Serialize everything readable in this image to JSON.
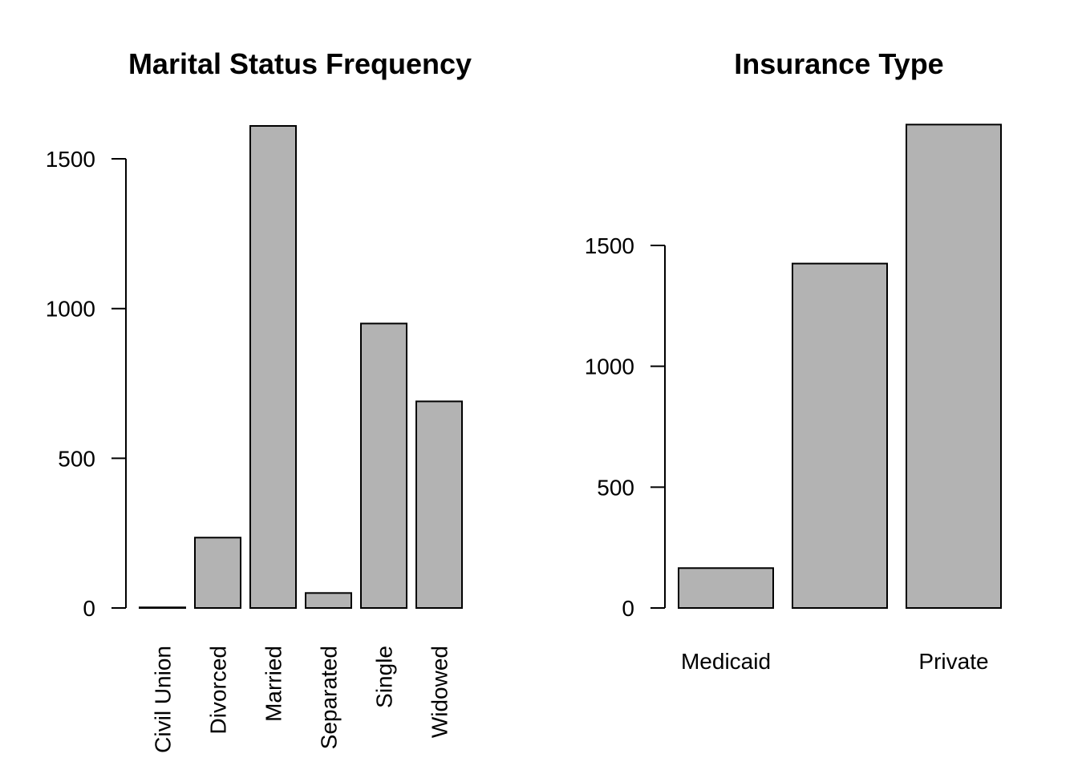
{
  "chart_data": [
    {
      "type": "bar",
      "title": "Marital Status Frequency",
      "xlabel": "",
      "ylabel": "",
      "categories": [
        "Civil Union",
        "Divorced",
        "Married",
        "Separated",
        "Single",
        "Widowed"
      ],
      "values": [
        2,
        235,
        1610,
        50,
        950,
        690
      ],
      "yticks": [
        0,
        500,
        1000,
        1500
      ],
      "bar_color": "#b3b3b3",
      "label_orientation": "vertical"
    },
    {
      "type": "bar",
      "title": "Insurance Type",
      "xlabel": "",
      "ylabel": "",
      "categories": [
        "Medicaid",
        "",
        "Private"
      ],
      "values": [
        165,
        1425,
        2000
      ],
      "yticks": [
        0,
        500,
        1000,
        1500
      ],
      "bar_color": "#b3b3b3",
      "label_orientation": "horizontal"
    }
  ]
}
